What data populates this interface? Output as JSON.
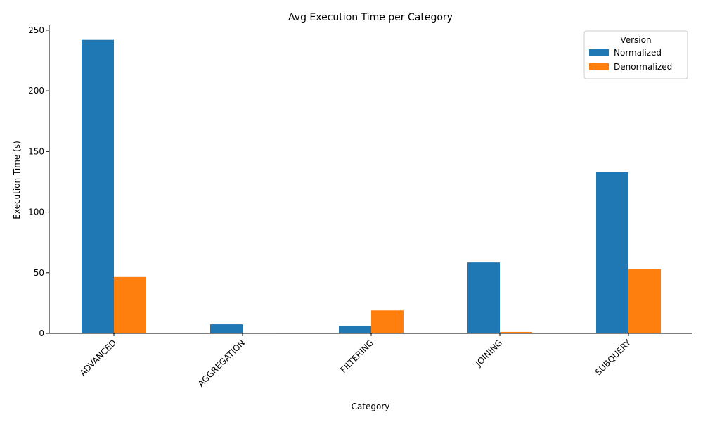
{
  "chart_data": {
    "type": "bar",
    "title": "Avg Execution Time per Category",
    "xlabel": "Category",
    "ylabel": "Execution Time (s)",
    "categories": [
      "ADVANCED",
      "AGGREGATION",
      "FILTERING",
      "JOINING",
      "SUBQUERY"
    ],
    "series": [
      {
        "name": "Normalized",
        "color": "#1f77b4",
        "values": [
          242,
          7.5,
          6,
          58.5,
          133
        ]
      },
      {
        "name": "Denormalized",
        "color": "#ff7f0e",
        "values": [
          46.5,
          0.3,
          19,
          1.2,
          53
        ]
      }
    ],
    "ylim": [
      0,
      254
    ],
    "yticks": [
      0,
      50,
      100,
      150,
      200,
      250
    ],
    "legend": {
      "title": "Version",
      "placement": "top-right"
    },
    "grid": false
  }
}
